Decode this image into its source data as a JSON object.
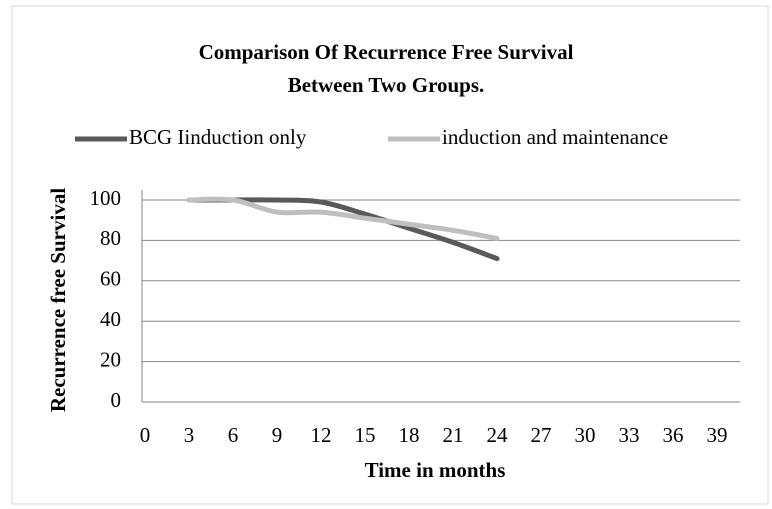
{
  "chart_data": {
    "type": "line",
    "title": "Comparison Of Recurrence Free Survival",
    "subtitle": "Between Two Groups.",
    "x_label": "Time in months",
    "y_label": "Recurrence free Survival",
    "x": [
      3,
      6,
      9,
      12,
      15,
      18,
      21,
      24
    ],
    "series": [
      {
        "name": "BCG Iinduction only",
        "color": "#595959",
        "values": [
          100,
          100,
          100,
          99,
          93,
          86,
          79,
          71
        ]
      },
      {
        "name": "induction and maintenance",
        "color": "#bfbfbf",
        "values": [
          100,
          100,
          94,
          94,
          91,
          88,
          85,
          81
        ]
      }
    ],
    "xlim": [
      0,
      39
    ],
    "xticks": [
      0,
      3,
      6,
      9,
      12,
      15,
      18,
      21,
      24,
      27,
      30,
      33,
      36,
      39
    ],
    "ylim": [
      0,
      100
    ],
    "yticks": [
      0,
      20,
      40,
      60,
      80,
      100
    ],
    "grid": true,
    "legend": "top"
  }
}
